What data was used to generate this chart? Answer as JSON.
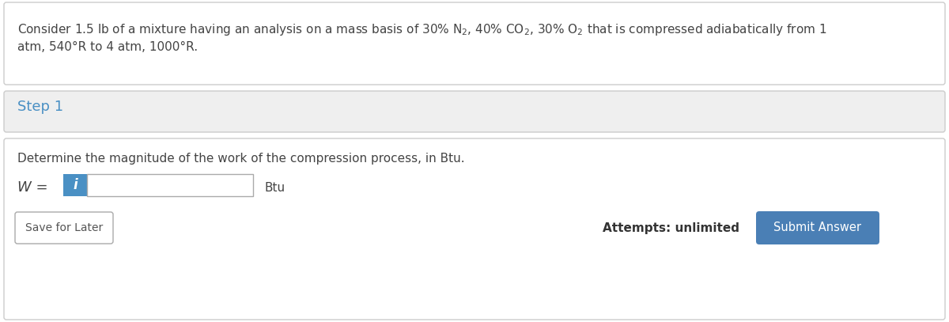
{
  "problem_line1": "Consider 1.5 lb of a mixture having an analysis on a mass basis of 30% $\\mathregular{N_2}$, 40% $\\mathregular{CO_2}$, 30% $\\mathregular{O_2}$ that is compressed adiabatically from 1",
  "problem_line2": "atm, 540°R to 4 atm, 1000°R.",
  "step_label": "Step 1",
  "instruction_text": "Determine the magnitude of the work of the compression process, in Btu.",
  "w_label": "W =",
  "unit_label": "Btu",
  "info_icon_label": "i",
  "save_button_text": "Save for Later",
  "attempts_text": "Attempts: unlimited",
  "submit_button_text": "Submit Answer",
  "bg_white": "#ffffff",
  "bg_light_gray": "#efefef",
  "border_color": "#cccccc",
  "step_text_color": "#4a90c4",
  "body_text_color": "#444444",
  "input_bg": "#ffffff",
  "input_border": "#aaaaaa",
  "info_icon_bg": "#4a90c4",
  "info_icon_text": "#ffffff",
  "submit_btn_bg": "#4a7fb5",
  "submit_btn_text": "#ffffff",
  "save_btn_bg": "#ffffff",
  "save_btn_border": "#aaaaaa",
  "save_btn_text": "#555555",
  "attempts_text_color": "#333333"
}
